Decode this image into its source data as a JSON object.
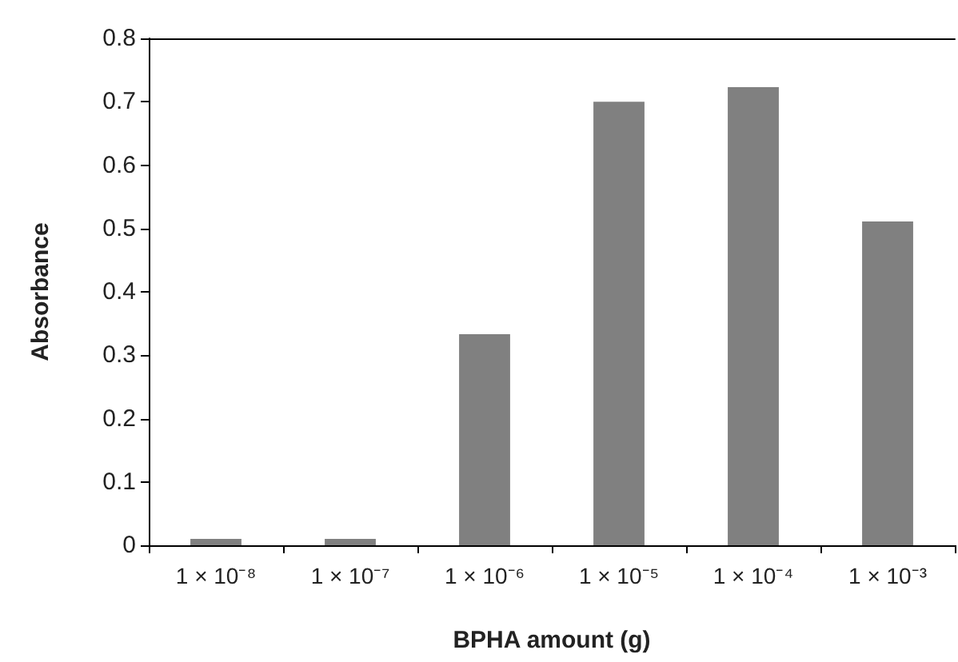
{
  "chart_data": {
    "type": "bar",
    "xlabel": "BPHA amount (g)",
    "ylabel": "Absorbance",
    "categories": [
      "1 × 10⁻⁸",
      "1 × 10⁻⁷",
      "1 × 10⁻⁶",
      "1 × 10⁻⁵",
      "1 × 10⁻⁴",
      "1 × 10⁻³"
    ],
    "values": [
      0.01,
      0.01,
      0.333,
      0.7,
      0.723,
      0.511
    ],
    "color": "#808080",
    "ylim": [
      0,
      0.8
    ],
    "yticks": [
      0,
      0.1,
      0.2,
      0.3,
      0.4,
      0.5,
      0.6,
      0.7,
      0.8
    ],
    "grid": false
  }
}
